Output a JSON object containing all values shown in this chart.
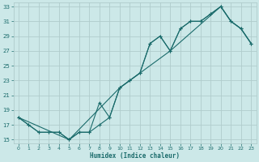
{
  "xlabel": "Humidex (Indice chaleur)",
  "xlim": [
    -0.5,
    23.5
  ],
  "ylim": [
    14.5,
    33.5
  ],
  "xticks": [
    0,
    1,
    2,
    3,
    4,
    5,
    6,
    7,
    8,
    9,
    10,
    11,
    12,
    13,
    14,
    15,
    16,
    17,
    18,
    19,
    20,
    21,
    22,
    23
  ],
  "yticks": [
    15,
    17,
    19,
    21,
    23,
    25,
    27,
    29,
    31,
    33
  ],
  "background_color": "#cce8e8",
  "grid_color": "#b0cccc",
  "line_color": "#1a6b6b",
  "line1_x": [
    0,
    1,
    2,
    3,
    4,
    5,
    6,
    7,
    8,
    9,
    10,
    11,
    12,
    13,
    14,
    15,
    16,
    17,
    18,
    19,
    20,
    21,
    22,
    23
  ],
  "line1_y": [
    18,
    17,
    16,
    16,
    16,
    15,
    16,
    16,
    17,
    18,
    22,
    23,
    24,
    28,
    29,
    27,
    30,
    31,
    31,
    32,
    33,
    31,
    30,
    28
  ],
  "line2_x": [
    0,
    1,
    2,
    3,
    4,
    5,
    6,
    7,
    8,
    9,
    10,
    11,
    12,
    13,
    14,
    15,
    16,
    17,
    18,
    19,
    20,
    21,
    22,
    23
  ],
  "line2_y": [
    18,
    17,
    16,
    16,
    16,
    15,
    16,
    16,
    20,
    18,
    22,
    23,
    24,
    28,
    29,
    27,
    30,
    31,
    31,
    32,
    33,
    31,
    30,
    28
  ],
  "line3_x": [
    0,
    5,
    10,
    15,
    20,
    21,
    22,
    23
  ],
  "line3_y": [
    18,
    15,
    22,
    27,
    33,
    31,
    30,
    28
  ]
}
